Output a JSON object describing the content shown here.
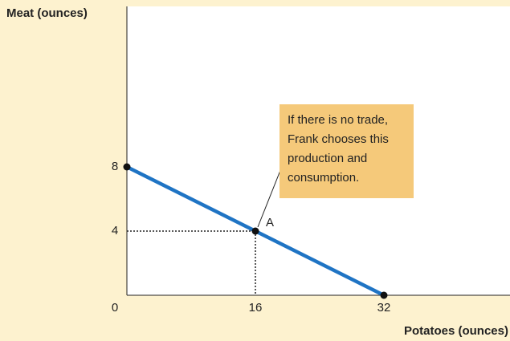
{
  "chart_data": {
    "type": "line",
    "y_label": "Meat (ounces)",
    "x_label": "Potatoes (ounces)",
    "series": [
      {
        "color": "#1f74c4",
        "x": [
          0,
          16,
          32
        ],
        "values": [
          8,
          4,
          0
        ],
        "point_labels": [
          null,
          "A",
          null
        ]
      }
    ],
    "xlim": [
      0,
      47.7
    ],
    "xticks": [
      0,
      16,
      32
    ],
    "ylim": [
      0,
      18
    ],
    "yticks": [
      4,
      8
    ],
    "annotation": {
      "lines": [
        "If there is no trade,",
        "Frank chooses this",
        "production and",
        "consumption."
      ],
      "point": 1,
      "color": "#f5c97a"
    }
  }
}
